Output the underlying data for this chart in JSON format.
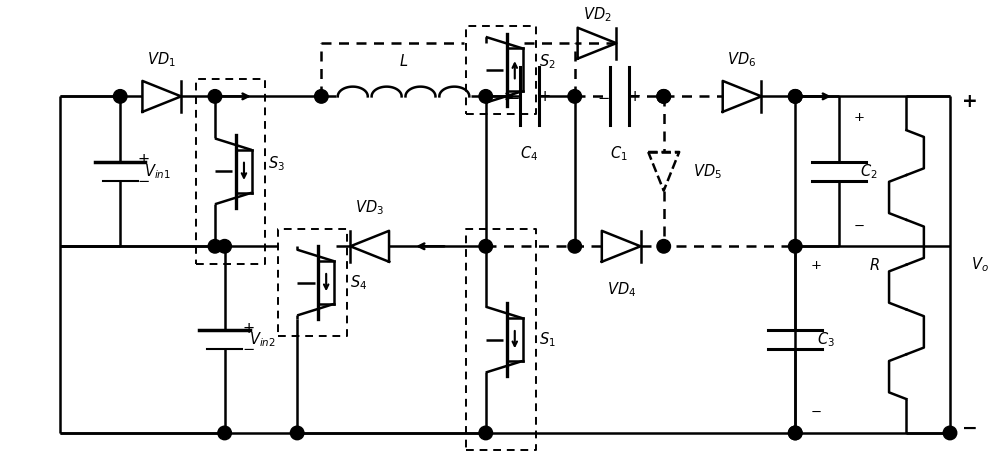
{
  "fig_width": 10.0,
  "fig_height": 4.57,
  "dpi": 100,
  "lw": 1.8,
  "dlw": 1.4,
  "fs": 10.5,
  "lc": "#000000"
}
